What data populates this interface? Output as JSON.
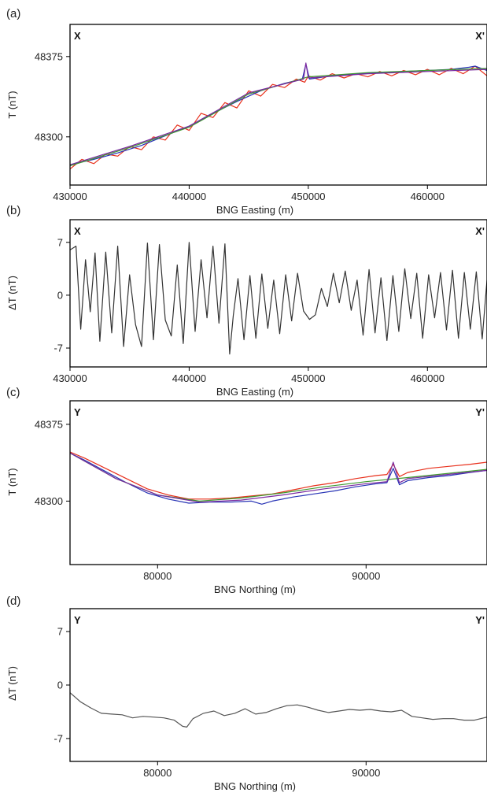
{
  "chart_data": [
    {
      "panel": "(a)",
      "type": "line",
      "corner_left": "X",
      "corner_right": "X'",
      "xlabel": "BNG Easting (m)",
      "ylabel": "T (nT)",
      "xlim": [
        430000,
        465000
      ],
      "ylim": [
        48255,
        48405
      ],
      "xticks": [
        430000,
        440000,
        450000,
        460000
      ],
      "yticks": [
        48300,
        48375
      ],
      "series": [
        {
          "color": "#e8301c",
          "x": [
            430000,
            431000,
            432000,
            433000,
            434000,
            435000,
            436000,
            437000,
            438000,
            439000,
            440000,
            441000,
            442000,
            443000,
            444000,
            445000,
            446000,
            447000,
            448000,
            449000,
            449700,
            450000,
            451000,
            452000,
            453000,
            454000,
            455000,
            456000,
            457000,
            458000,
            459000,
            460000,
            461000,
            462000,
            463000,
            464000,
            465000
          ],
          "y": [
            48270,
            48279,
            48275,
            48284,
            48282,
            48291,
            48288,
            48300,
            48297,
            48311,
            48306,
            48322,
            48318,
            48332,
            48327,
            48343,
            48338,
            48349,
            48346,
            48354,
            48351,
            48357,
            48353,
            48359,
            48355,
            48359,
            48356,
            48361,
            48357,
            48362,
            48358,
            48363,
            48358,
            48364,
            48359,
            48366,
            48357
          ]
        },
        {
          "color": "#2733b5",
          "x": [
            430000,
            432000,
            434000,
            436000,
            438000,
            440000,
            442000,
            444000,
            446000,
            448000,
            449500,
            449800,
            450100,
            452000,
            454000,
            456000,
            458000,
            460000,
            462000,
            463500,
            464000,
            465000
          ],
          "y": [
            48274,
            48279,
            48285,
            48292,
            48301,
            48310,
            48322,
            48333,
            48343,
            48350,
            48354,
            48368,
            48354,
            48357,
            48359,
            48360,
            48361,
            48362,
            48363,
            48365,
            48366,
            48362
          ]
        },
        {
          "color": "#3f9a2f",
          "x": [
            430000,
            435000,
            440000,
            445000,
            450000,
            455000,
            460000,
            465000
          ],
          "y": [
            48273,
            48290,
            48309,
            48340,
            48356,
            48360,
            48362,
            48364
          ]
        },
        {
          "color": "#7a2aa0",
          "x": [
            430000,
            435000,
            440000,
            445000,
            449600,
            449800,
            450000,
            455000,
            460000,
            465000
          ],
          "y": [
            48274,
            48291,
            48310,
            48341,
            48354,
            48369,
            48355,
            48359,
            48361,
            48363
          ]
        }
      ]
    },
    {
      "panel": "(b)",
      "type": "line",
      "corner_left": "X",
      "corner_right": "X'",
      "xlabel": "BNG Easting (m)",
      "ylabel": "ΔT (nT)",
      "xlim": [
        430000,
        465000
      ],
      "ylim": [
        -9.5,
        10
      ],
      "xticks": [
        430000,
        440000,
        450000,
        460000
      ],
      "yticks": [
        7,
        0,
        -7
      ],
      "series": [
        {
          "color": "#333333",
          "x": [
            430000,
            430500,
            430900,
            431300,
            431700,
            432100,
            432500,
            433000,
            433500,
            434000,
            434500,
            435000,
            435500,
            436000,
            436500,
            437000,
            437500,
            438000,
            438500,
            439000,
            439500,
            440000,
            440500,
            441000,
            441500,
            442000,
            442500,
            443000,
            443400,
            443700,
            444100,
            444600,
            445100,
            445600,
            446100,
            446600,
            447100,
            447600,
            448100,
            448600,
            449100,
            449600,
            450100,
            450600,
            451100,
            451600,
            452100,
            452600,
            453100,
            453600,
            454100,
            454600,
            455100,
            455600,
            456100,
            456600,
            457100,
            457600,
            458100,
            458600,
            459100,
            459600,
            460100,
            460600,
            461100,
            461600,
            462100,
            462600,
            463100,
            463600,
            464100,
            464600,
            465000
          ],
          "y": [
            6,
            6.5,
            -4.5,
            4.7,
            -2.2,
            5.6,
            -6.1,
            5.7,
            -5.0,
            6.5,
            -6.8,
            2.7,
            -3.9,
            -6.8,
            6.9,
            -5.9,
            6.7,
            -3.3,
            -5.4,
            4.0,
            -6.4,
            7.0,
            -4.8,
            4.7,
            -3.0,
            6.5,
            -3.7,
            6.8,
            -7.8,
            -2.7,
            2.2,
            -5.9,
            2.6,
            -5.7,
            2.8,
            -4.4,
            2.0,
            -5.1,
            2.7,
            -3.4,
            2.9,
            -2.1,
            -3.2,
            -2.6,
            0.9,
            -1.5,
            2.9,
            -1.0,
            3.2,
            -2.0,
            2.0,
            -5.3,
            3.4,
            -5.0,
            2.3,
            -6.0,
            2.6,
            -4.8,
            3.5,
            -3.1,
            2.9,
            -5.7,
            2.7,
            -3.0,
            3.0,
            -4.6,
            3.3,
            -5.7,
            3.0,
            -4.5,
            3.1,
            -5.8,
            2.0
          ]
        }
      ]
    },
    {
      "panel": "(c)",
      "type": "line",
      "corner_left": "Y",
      "corner_right": "Y'",
      "xlabel": "BNG Northing (m)",
      "ylabel": "T (nT)",
      "xlim": [
        75800,
        95800
      ],
      "ylim": [
        48238,
        48398
      ],
      "xticks": [
        80000,
        90000
      ],
      "yticks": [
        48300,
        48375
      ],
      "series": [
        {
          "color": "#e8301c",
          "x": [
            75800,
            76500,
            77500,
            78500,
            79500,
            80500,
            81500,
            82500,
            83500,
            84500,
            85500,
            86500,
            87500,
            88500,
            89500,
            90500,
            91000,
            91300,
            91600,
            92000,
            93000,
            94000,
            95000,
            95800
          ],
          "y": [
            48348,
            48342,
            48332,
            48322,
            48312,
            48306,
            48302,
            48302,
            48303,
            48305,
            48307,
            48311,
            48315,
            48318,
            48322,
            48325,
            48326,
            48336,
            48324,
            48328,
            48332,
            48334,
            48336,
            48338
          ]
        },
        {
          "color": "#2733b5",
          "x": [
            75800,
            76500,
            77500,
            78500,
            79500,
            80500,
            81500,
            82500,
            83500,
            84500,
            85000,
            85500,
            86500,
            87500,
            88500,
            89500,
            90500,
            91000,
            91300,
            91600,
            92000,
            93000,
            94000,
            95000,
            95800
          ],
          "y": [
            48347,
            48340,
            48329,
            48318,
            48308,
            48302,
            48298,
            48299,
            48299,
            48300,
            48297,
            48300,
            48304,
            48307,
            48310,
            48314,
            48317,
            48318,
            48332,
            48316,
            48320,
            48323,
            48325,
            48328,
            48330
          ]
        },
        {
          "color": "#3f9a2f",
          "x": [
            75800,
            78000,
            80000,
            82000,
            84000,
            86000,
            88000,
            90000,
            92000,
            95800
          ],
          "y": [
            48347,
            48322,
            48306,
            48300,
            48303,
            48308,
            48314,
            48319,
            48323,
            48331
          ]
        },
        {
          "color": "#7a2aa0",
          "x": [
            75800,
            78000,
            80000,
            82000,
            84000,
            86000,
            88000,
            90000,
            91000,
            91300,
            91600,
            92000,
            95800
          ],
          "y": [
            48347,
            48322,
            48306,
            48299,
            48301,
            48306,
            48312,
            48317,
            48319,
            48338,
            48318,
            48322,
            48330
          ]
        }
      ]
    },
    {
      "panel": "(d)",
      "type": "line",
      "corner_left": "Y",
      "corner_right": "Y'",
      "xlabel": "BNG Northing (m)",
      "ylabel": "ΔT (nT)",
      "xlim": [
        75800,
        95800
      ],
      "ylim": [
        -10,
        10
      ],
      "xticks": [
        80000,
        90000
      ],
      "yticks": [
        7,
        0,
        -7
      ],
      "series": [
        {
          "color": "#555555",
          "x": [
            75800,
            76300,
            76800,
            77300,
            77800,
            78300,
            78800,
            79300,
            79800,
            80300,
            80800,
            81200,
            81400,
            81700,
            82200,
            82700,
            83200,
            83700,
            84200,
            84700,
            85200,
            85700,
            86200,
            86700,
            87200,
            87700,
            88200,
            88700,
            89200,
            89700,
            90200,
            90700,
            91200,
            91700,
            92200,
            92700,
            93200,
            93700,
            94200,
            94700,
            95200,
            95800
          ],
          "y": [
            -1.0,
            -2.2,
            -3.0,
            -3.7,
            -3.8,
            -3.9,
            -4.3,
            -4.1,
            -4.2,
            -4.3,
            -4.6,
            -5.4,
            -5.5,
            -4.4,
            -3.7,
            -3.4,
            -4.0,
            -3.7,
            -3.1,
            -3.8,
            -3.6,
            -3.1,
            -2.7,
            -2.6,
            -2.9,
            -3.3,
            -3.6,
            -3.4,
            -3.2,
            -3.3,
            -3.2,
            -3.4,
            -3.5,
            -3.3,
            -4.1,
            -4.3,
            -4.5,
            -4.4,
            -4.4,
            -4.6,
            -4.6,
            -4.2
          ]
        }
      ]
    }
  ]
}
